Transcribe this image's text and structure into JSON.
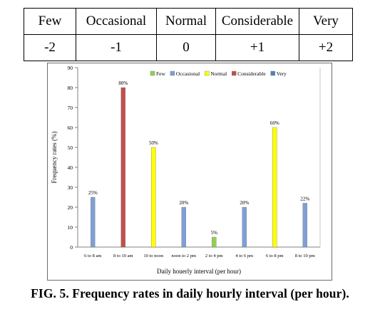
{
  "scale_table": {
    "labels": [
      "Few",
      "Occasional",
      "Normal",
      "Considerable",
      "Very"
    ],
    "values": [
      "-2",
      "-1",
      "0",
      "+1",
      "+2"
    ]
  },
  "chart_data": {
    "type": "bar",
    "xlabel": "Daily houerly interval (per hour)",
    "ylabel": "Frequency rates (%)",
    "ylim": [
      0,
      90
    ],
    "yticks": [
      0,
      10,
      20,
      30,
      40,
      50,
      60,
      70,
      80,
      90
    ],
    "legend_position": "top-right",
    "categories": [
      "6 to 8 am",
      "8 to 10 am",
      "10 to noon",
      "noon to 2 pm",
      "2 to 4 pm",
      "4 to 6 pm",
      "6 to 8 pm",
      "8 to 10 pm"
    ],
    "series": [
      {
        "name": "Few",
        "color": "#92d050",
        "values": [
          null,
          null,
          null,
          null,
          5,
          null,
          null,
          null
        ]
      },
      {
        "name": "Occasional",
        "color": "#7f9fd6",
        "values": [
          25,
          null,
          null,
          20,
          null,
          20,
          null,
          22
        ]
      },
      {
        "name": "Normal",
        "color": "#ffff00",
        "values": [
          null,
          null,
          50,
          null,
          null,
          null,
          60,
          null
        ]
      },
      {
        "name": "Considerable",
        "color": "#c0504d",
        "values": [
          null,
          80,
          null,
          null,
          null,
          null,
          null,
          null
        ]
      },
      {
        "name": "Very",
        "color": "#4f81bd",
        "values": [
          null,
          null,
          null,
          null,
          null,
          null,
          null,
          null
        ]
      }
    ],
    "data_labels": [
      "25%",
      "80%",
      "50%",
      "20%",
      "5%",
      "20%",
      "60%",
      "22%"
    ],
    "grid": false
  },
  "caption": "FIG. 5. Frequency rates in daily hourly interval (per hour)."
}
